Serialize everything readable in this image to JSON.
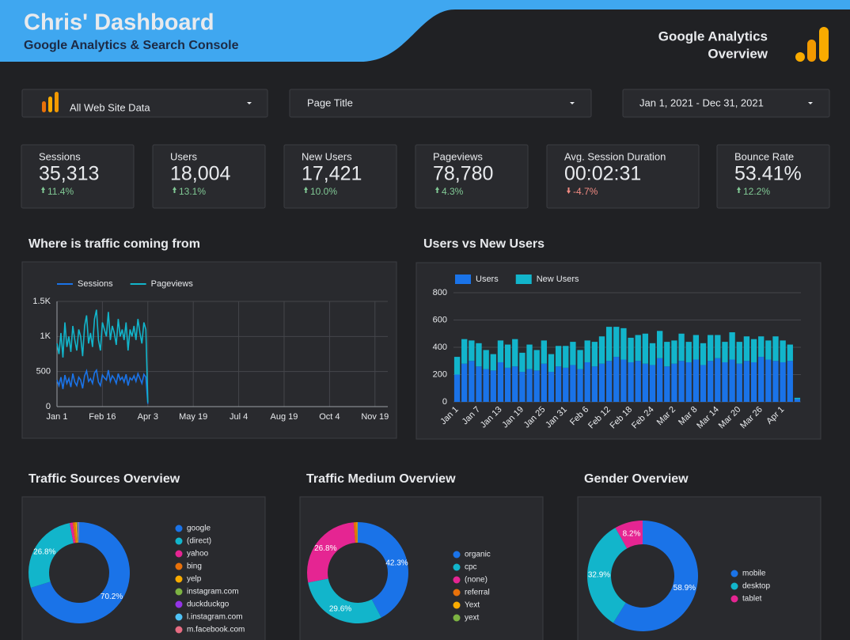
{
  "header": {
    "title": "Chris' Dashboard",
    "subtitle": "Google Analytics & Search Console",
    "report_title": [
      "Google Analytics",
      "Overview"
    ]
  },
  "filters": [
    "All Web Site Data",
    "Page Title",
    "Jan 1, 2021 - Dec 31, 2021"
  ],
  "kpis": [
    {
      "label": "Sessions",
      "value": "35,313",
      "change": "11.4%",
      "trend": "up"
    },
    {
      "label": "Users",
      "value": "18,004",
      "change": "13.1%",
      "trend": "up"
    },
    {
      "label": "New Users",
      "value": "17,421",
      "change": "10.0%",
      "trend": "up"
    },
    {
      "label": "Pageviews",
      "value": "78,780",
      "change": "4.3%",
      "trend": "up"
    },
    {
      "label": "Avg. Session Duration",
      "value": "00:02:31",
      "change": "-4.7%",
      "trend": "down"
    },
    {
      "label": "Bounce Rate",
      "value": "53.41%",
      "change": "12.2%",
      "trend": "up"
    }
  ],
  "chart_data": [
    {
      "type": "line",
      "title": "Where is traffic coming from",
      "x": [
        0,
        2,
        4,
        6,
        8,
        10,
        12,
        14,
        16,
        18,
        20,
        22,
        24,
        26,
        28,
        30,
        32,
        34,
        36,
        38,
        40,
        42,
        44,
        46,
        48,
        50,
        52,
        54,
        56,
        58,
        60,
        62,
        64,
        66,
        68,
        70,
        72,
        74,
        76,
        78,
        80,
        82,
        84,
        86,
        88,
        90,
        92
      ],
      "series": [
        {
          "name": "Sessions",
          "color": "#1a73e8",
          "values": [
            380,
            300,
            420,
            250,
            450,
            330,
            400,
            280,
            470,
            350,
            300,
            420,
            380,
            260,
            440,
            510,
            360,
            400,
            330,
            480,
            520,
            350,
            300,
            450,
            410,
            380,
            520,
            360,
            440,
            400,
            330,
            470,
            380,
            420,
            350,
            460,
            300,
            410,
            380,
            440,
            360,
            470,
            400,
            330,
            460,
            420,
            40
          ]
        },
        {
          "name": "Pageviews",
          "color": "#12b5cb",
          "values": [
            900,
            750,
            1050,
            700,
            1200,
            850,
            1000,
            780,
            1150,
            950,
            800,
            1100,
            1000,
            720,
            1150,
            1300,
            900,
            1050,
            850,
            1250,
            1380,
            950,
            800,
            1200,
            1100,
            1000,
            1350,
            950,
            1150,
            1050,
            880,
            1250,
            1000,
            1100,
            950,
            1200,
            800,
            1100,
            1000,
            1150,
            950,
            1250,
            1050,
            900,
            1200,
            1100,
            60
          ]
        }
      ],
      "xlim": [
        0,
        335
      ],
      "xticks": [
        {
          "value": 0,
          "label": "Jan 1"
        },
        {
          "value": 46,
          "label": "Feb 16"
        },
        {
          "value": 92,
          "label": "Apr 3"
        },
        {
          "value": 138,
          "label": "May 19"
        },
        {
          "value": 184,
          "label": "Jul 4"
        },
        {
          "value": 230,
          "label": "Aug 19"
        },
        {
          "value": 276,
          "label": "Oct 4"
        },
        {
          "value": 322,
          "label": "Nov 19"
        }
      ],
      "ylim": [
        0,
        1500
      ],
      "yticks": [
        0,
        500,
        {
          "value": 1000,
          "label": "1K"
        },
        {
          "value": 1500,
          "label": "1.5K"
        }
      ],
      "grid": true
    },
    {
      "type": "stacked_bar",
      "title": "Users vs New Users",
      "categories": [
        "Jan 1",
        null,
        null,
        "Jan 7",
        null,
        null,
        "Jan 13",
        null,
        null,
        "Jan 19",
        null,
        null,
        "Jan 25",
        null,
        null,
        "Jan 31",
        null,
        null,
        "Feb 6",
        null,
        null,
        "Feb 12",
        null,
        null,
        "Feb 18",
        null,
        null,
        "Feb 24",
        null,
        null,
        "Mar 2",
        null,
        null,
        "Mar 8",
        null,
        null,
        "Mar 14",
        null,
        null,
        "Mar 20",
        null,
        null,
        "Mar 26",
        null,
        null,
        "Apr 1",
        null,
        null
      ],
      "series": [
        {
          "name": "Users",
          "color": "#1a73e8",
          "values": [
            200,
            280,
            300,
            260,
            240,
            230,
            290,
            250,
            260,
            220,
            240,
            230,
            280,
            220,
            260,
            250,
            270,
            240,
            290,
            260,
            280,
            300,
            330,
            310,
            290,
            300,
            280,
            270,
            320,
            260,
            280,
            300,
            290,
            310,
            270,
            300,
            320,
            290,
            310,
            280,
            300,
            290,
            330,
            310,
            300,
            290,
            300,
            20
          ]
        },
        {
          "name": "New Users",
          "color": "#12b5cb",
          "values": [
            130,
            180,
            150,
            170,
            140,
            120,
            160,
            170,
            200,
            140,
            180,
            150,
            170,
            130,
            150,
            160,
            170,
            140,
            160,
            180,
            200,
            250,
            220,
            230,
            180,
            190,
            220,
            160,
            200,
            180,
            170,
            200,
            150,
            180,
            160,
            190,
            170,
            150,
            200,
            160,
            180,
            170,
            150,
            140,
            180,
            160,
            120,
            10
          ]
        }
      ],
      "ylim": [
        0,
        800
      ],
      "yticks": [
        0,
        200,
        400,
        600,
        800
      ],
      "grid": true
    },
    {
      "type": "pie",
      "title": "Traffic Sources Overview",
      "categories": [
        "google",
        "(direct)",
        "yahoo",
        "bing",
        "yelp",
        "instagram.com",
        "duckduckgo",
        "l.instagram.com",
        "m.facebook.com"
      ],
      "values": [
        70.2,
        26.8,
        1.0,
        0.8,
        0.4,
        0.3,
        0.2,
        0.2,
        0.1
      ],
      "value_labels": [
        "70.2%",
        "26.8%",
        null,
        null,
        null,
        null,
        null,
        null,
        null
      ],
      "colors": [
        "#1a73e8",
        "#12b5cb",
        "#e52592",
        "#e8710a",
        "#f9ab00",
        "#7cb342",
        "#9334e6",
        "#4fc3f7",
        "#e66c82"
      ]
    },
    {
      "type": "pie",
      "title": "Traffic Medium Overview",
      "categories": [
        "organic",
        "cpc",
        "(none)",
        "referral",
        "Yext",
        "yext"
      ],
      "values": [
        42.3,
        29.6,
        26.8,
        0.9,
        0.3,
        0.1
      ],
      "value_labels": [
        "42.3%",
        "29.6%",
        "26.8%",
        null,
        null,
        null
      ],
      "colors": [
        "#1a73e8",
        "#12b5cb",
        "#e52592",
        "#e8710a",
        "#f9ab00",
        "#7cb342"
      ]
    },
    {
      "type": "pie",
      "title": "Gender Overview",
      "categories": [
        "mobile",
        "desktop",
        "tablet"
      ],
      "values": [
        58.9,
        32.9,
        8.2
      ],
      "value_labels": [
        "58.9%",
        "32.9%",
        "8.2%"
      ],
      "colors": [
        "#1a73e8",
        "#12b5cb",
        "#e52592"
      ]
    }
  ]
}
